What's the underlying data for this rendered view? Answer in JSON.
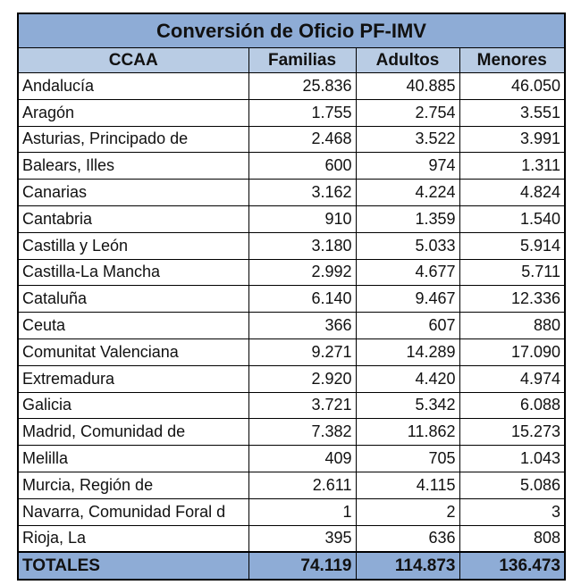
{
  "title": "Conversión de Oficio PF-IMV",
  "headers": [
    "CCAA",
    "Familias",
    "Adultos",
    "Menores"
  ],
  "rows": [
    [
      "Andalucía",
      "25.836",
      "40.885",
      "46.050"
    ],
    [
      "Aragón",
      "1.755",
      "2.754",
      "3.551"
    ],
    [
      "Asturias, Principado de",
      "2.468",
      "3.522",
      "3.991"
    ],
    [
      "Balears, Illes",
      "600",
      "974",
      "1.311"
    ],
    [
      "Canarias",
      "3.162",
      "4.224",
      "4.824"
    ],
    [
      "Cantabria",
      "910",
      "1.359",
      "1.540"
    ],
    [
      "Castilla y León",
      "3.180",
      "5.033",
      "5.914"
    ],
    [
      "Castilla-La Mancha",
      "2.992",
      "4.677",
      "5.711"
    ],
    [
      "Cataluña",
      "6.140",
      "9.467",
      "12.336"
    ],
    [
      "Ceuta",
      "366",
      "607",
      "880"
    ],
    [
      "Comunitat Valenciana",
      "9.271",
      "14.289",
      "17.090"
    ],
    [
      "Extremadura",
      "2.920",
      "4.420",
      "4.974"
    ],
    [
      "Galicia",
      "3.721",
      "5.342",
      "6.088"
    ],
    [
      "Madrid, Comunidad de",
      "7.382",
      "11.862",
      "15.273"
    ],
    [
      "Melilla",
      "409",
      "705",
      "1.043"
    ],
    [
      "Murcia, Región de",
      "2.611",
      "4.115",
      "5.086"
    ],
    [
      "Navarra, Comunidad Foral d",
      "1",
      "2",
      "3"
    ],
    [
      "Rioja, La",
      "395",
      "636",
      "808"
    ]
  ],
  "totals": [
    "TOTALES",
    "74.119",
    "114.873",
    "136.473"
  ]
}
